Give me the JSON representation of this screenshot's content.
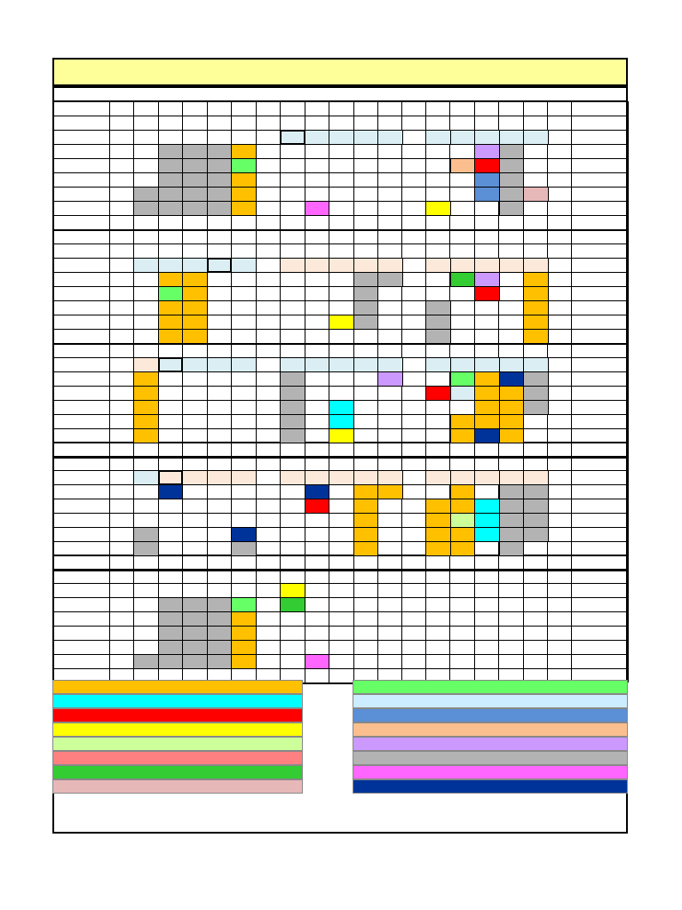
{
  "sheet": {
    "title": "",
    "palette": {
      "orange": "#ffc000",
      "gray": "#b3b3b3",
      "green": "#66ff66",
      "lightblue": "#daeef3",
      "peach": "#fde9d9",
      "lavender": "#cc99ff",
      "salmon": "#fbbf8f",
      "red": "#ff0000",
      "blue": "#5b8fd6",
      "pink": "#e6b8b7",
      "magenta": "#ff66ff",
      "yellow": "#ffff00",
      "cyan": "#00ffff",
      "navy": "#003399",
      "darkgreen": "#33cc33",
      "lime": "#ccff99"
    }
  },
  "legend": {
    "left": [
      "#ffc000",
      "#00ffff",
      "#ff0000",
      "#ffff00",
      "#ccff99",
      "#ff8080",
      "#33cc33",
      "#e6b8b7"
    ],
    "right": [
      "#66ff66",
      "#ccecff",
      "#5b8fd6",
      "#fbbf8f",
      "#cc99ff",
      "#b3b3b3",
      "#ff66ff",
      "#003399"
    ]
  }
}
